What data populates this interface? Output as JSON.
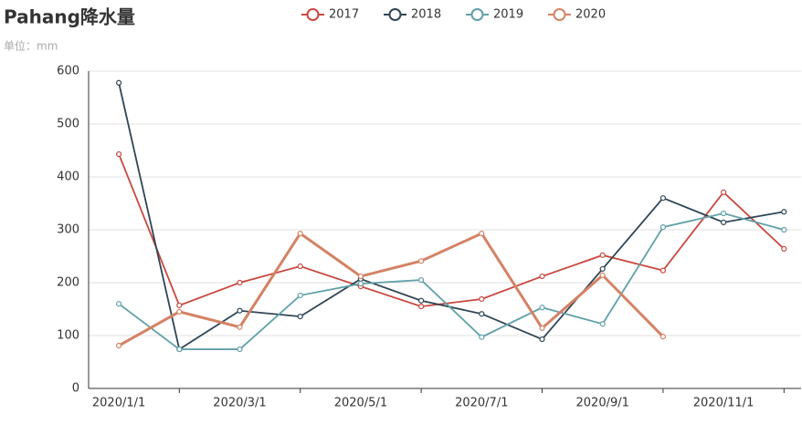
{
  "chart_data": {
    "type": "line",
    "title": "Pahang降水量",
    "subtitle": "单位：mm",
    "categories": [
      "2020/1/1",
      null,
      "2020/3/1",
      null,
      "2020/5/1",
      null,
      "2020/7/1",
      null,
      "2020/9/1",
      null,
      "2020/11/1",
      null
    ],
    "series": [
      {
        "name": "2017",
        "color": "#c9473f",
        "values": [
          443,
          157,
          200,
          231,
          193,
          155,
          169,
          212,
          252,
          223,
          371,
          264
        ]
      },
      {
        "name": "2018",
        "color": "#2f4554",
        "values": [
          578,
          74,
          147,
          136,
          207,
          166,
          141,
          93,
          226,
          360,
          314,
          334
        ]
      },
      {
        "name": "2019",
        "color": "#61a0a8",
        "values": [
          160,
          74,
          74,
          176,
          198,
          205,
          97,
          153,
          122,
          305,
          331,
          300
        ]
      },
      {
        "name": "2020",
        "color": "#d48265",
        "values": [
          81,
          145,
          116,
          293,
          212,
          241,
          293,
          114,
          214,
          98,
          null,
          null
        ]
      }
    ],
    "ylim": [
      0,
      600
    ],
    "yticks": [
      0,
      100,
      200,
      300,
      400,
      500,
      600
    ],
    "grid": true,
    "legend": "top"
  }
}
